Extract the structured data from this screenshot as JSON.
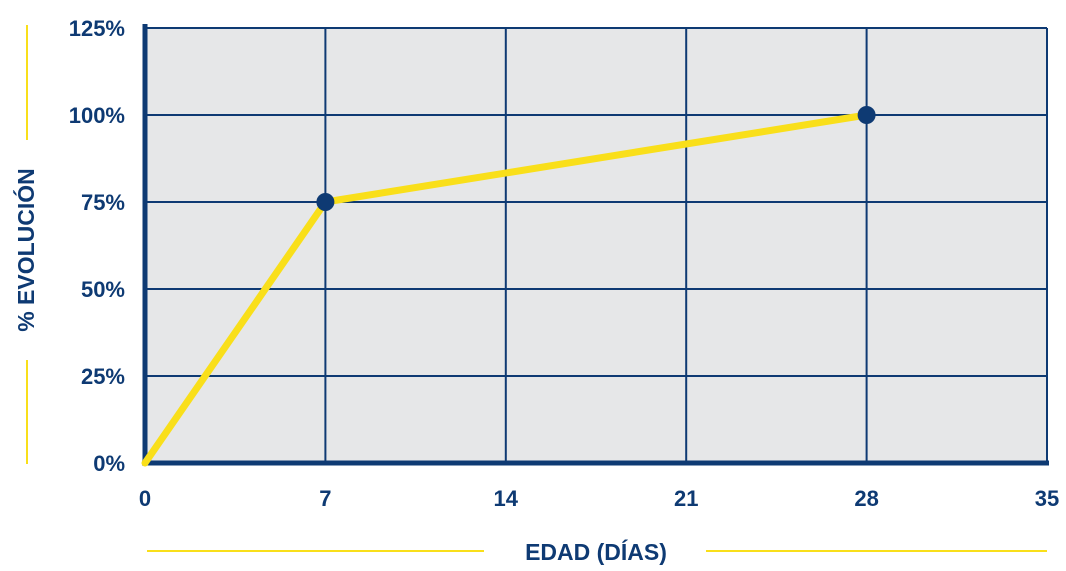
{
  "colors": {
    "axis": "#0e3a73",
    "grid": "#0e3a73",
    "plot_background": "#e6e7e8",
    "line": "#f9df1a",
    "marker": "#0e3a73",
    "title_rule": "#f9df1a"
  },
  "chart_data": {
    "type": "line",
    "title": "",
    "xlabel": "EDAD (DÍAS)",
    "ylabel": "% EVOLUCIÓN",
    "x_ticks": [
      0,
      7,
      14,
      21,
      28,
      35
    ],
    "x_tick_labels": [
      "0",
      "7",
      "14",
      "21",
      "28",
      "35"
    ],
    "y_ticks": [
      0,
      25,
      50,
      75,
      100,
      125
    ],
    "y_tick_labels": [
      "0%",
      "25%",
      "50%",
      "75%",
      "100%",
      "125%"
    ],
    "xlim": [
      0,
      35
    ],
    "ylim": [
      0,
      125
    ],
    "grid": true,
    "series": [
      {
        "x": [
          0,
          7,
          28
        ],
        "y": [
          0,
          75,
          100
        ],
        "markers": [
          7,
          28
        ]
      }
    ]
  }
}
